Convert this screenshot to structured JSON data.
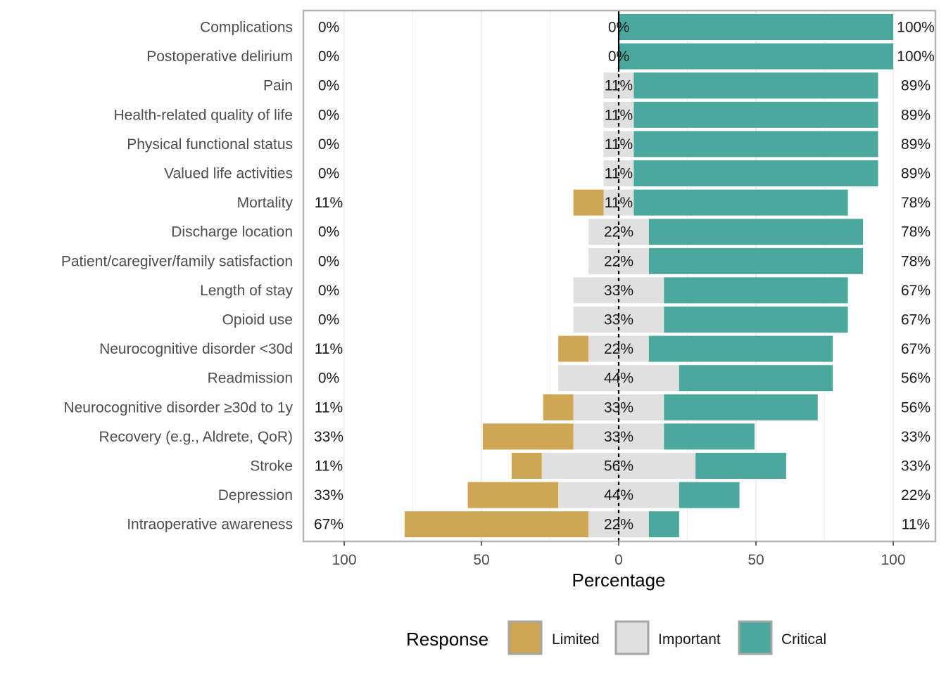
{
  "chart_data": {
    "type": "bar",
    "orientation": "horizontal-diverging",
    "categories": [
      "Complications",
      "Postoperative delirium",
      "Pain",
      "Health-related quality of life",
      "Physical functional status",
      "Valued life activities",
      "Mortality",
      "Discharge location",
      "Patient/caregiver/family satisfaction",
      "Length of stay",
      "Opioid use",
      "Neurocognitive disorder <30d",
      "Readmission",
      "Neurocognitive disorder ≥30d to 1y",
      "Recovery (e.g., Aldrete, QoR)",
      "Stroke",
      "Depression",
      "Intraoperative awareness"
    ],
    "series": [
      {
        "name": "Limited",
        "color": "#CFA653",
        "values": [
          0,
          0,
          0,
          0,
          0,
          0,
          11,
          0,
          0,
          0,
          0,
          11,
          0,
          11,
          33,
          11,
          33,
          67
        ]
      },
      {
        "name": "Important",
        "color": "#E0E0E0",
        "values": [
          0,
          0,
          11,
          11,
          11,
          11,
          11,
          22,
          22,
          33,
          33,
          22,
          44,
          33,
          33,
          56,
          44,
          22
        ]
      },
      {
        "name": "Critical",
        "color": "#4BA89C",
        "values": [
          100,
          100,
          89,
          89,
          89,
          89,
          78,
          78,
          78,
          67,
          67,
          67,
          56,
          56,
          33,
          33,
          22,
          11
        ]
      }
    ],
    "labels": {
      "limited": [
        "0%",
        "0%",
        "0%",
        "0%",
        "0%",
        "0%",
        "11%",
        "0%",
        "0%",
        "0%",
        "0%",
        "11%",
        "0%",
        "11%",
        "33%",
        "11%",
        "33%",
        "67%"
      ],
      "important": [
        "0%",
        "0%",
        "11%",
        "11%",
        "11%",
        "11%",
        "11%",
        "22%",
        "22%",
        "33%",
        "33%",
        "22%",
        "44%",
        "33%",
        "33%",
        "56%",
        "44%",
        "22%"
      ],
      "critical": [
        "100%",
        "100%",
        "89%",
        "89%",
        "89%",
        "89%",
        "78%",
        "78%",
        "78%",
        "67%",
        "67%",
        "67%",
        "56%",
        "56%",
        "33%",
        "33%",
        "22%",
        "11%"
      ]
    },
    "xlabel": "Percentage",
    "xlim": [
      -115,
      115
    ],
    "xticks": [
      -100,
      -50,
      0,
      50,
      100
    ],
    "xtick_labels": [
      "100",
      "50",
      "0",
      "50",
      "100"
    ],
    "grid": true,
    "legend": {
      "title": "Response",
      "position": "bottom",
      "entries": [
        "Limited",
        "Important",
        "Critical"
      ]
    }
  }
}
